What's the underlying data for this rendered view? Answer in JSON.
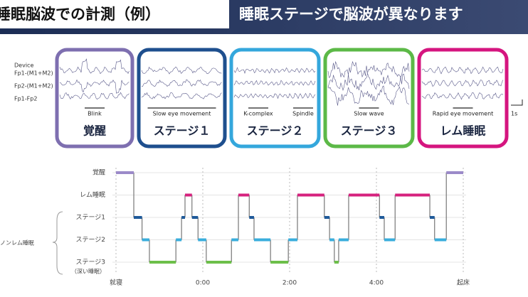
{
  "header": {
    "title": "睡眠脳波での計測（例）",
    "subtitle": "睡眠ステージで脳波が異なります"
  },
  "eeg": {
    "device_label": "Device",
    "channels": [
      "Fp1-(M1+M2)",
      "Fp2-(M1+M2)",
      "Fp1-Fp2"
    ],
    "scale_label": "1s",
    "panels": [
      {
        "label": "覚醒",
        "color": "#7e6fb0",
        "annotations": [
          "Blink"
        ]
      },
      {
        "label": "ステージ１",
        "color": "#1e4f8e",
        "annotations": [
          "Slow eye movement"
        ]
      },
      {
        "label": "ステージ２",
        "color": "#34a7dc",
        "annotations": [
          "K-complex",
          "Spindle"
        ]
      },
      {
        "label": "ステージ３",
        "color": "#5cb947",
        "annotations": [
          "Slow wave"
        ]
      },
      {
        "label": "レム睡眠",
        "color": "#d5157f",
        "annotations": [
          "Rapid eye movement"
        ]
      }
    ]
  },
  "chart_data": {
    "type": "step",
    "y_categories": [
      "覚醒",
      "レム睡眠",
      "ステージ1",
      "ステージ2",
      "ステージ3"
    ],
    "y_sublabel": "（深い睡眠）",
    "group_label": "ノンレム睡眠",
    "stage_colors": [
      "#9b8ac9",
      "#d6217e",
      "#1f5a9a",
      "#3aaedc",
      "#6dbf4a"
    ],
    "x": [
      -2,
      -1.59,
      -1.4,
      -1.23,
      -0.62,
      -0.49,
      -0.41,
      -0.25,
      -0.11,
      0.08,
      0.66,
      0.82,
      1.07,
      1.18,
      1.56,
      1.97,
      2.18,
      2.8,
      2.92,
      3.03,
      3.13,
      3.36,
      4.07,
      4.18,
      4.43,
      5.23,
      5.34,
      5.61,
      6
    ],
    "stages": [
      0,
      2,
      3,
      4,
      3,
      2,
      1,
      2,
      3,
      4,
      3,
      1,
      2,
      3,
      4,
      3,
      1,
      2,
      3,
      4,
      3,
      1,
      2,
      3,
      1,
      2,
      3,
      0
    ],
    "xlim": [
      -2,
      6
    ],
    "xticks": [
      {
        "value": -2,
        "label": "就寝"
      },
      {
        "value": 0,
        "label": "0:00"
      },
      {
        "value": 2,
        "label": "2:00"
      },
      {
        "value": 4,
        "label": "4:00"
      },
      {
        "value": 6,
        "label": "起床"
      }
    ],
    "grid": true
  }
}
